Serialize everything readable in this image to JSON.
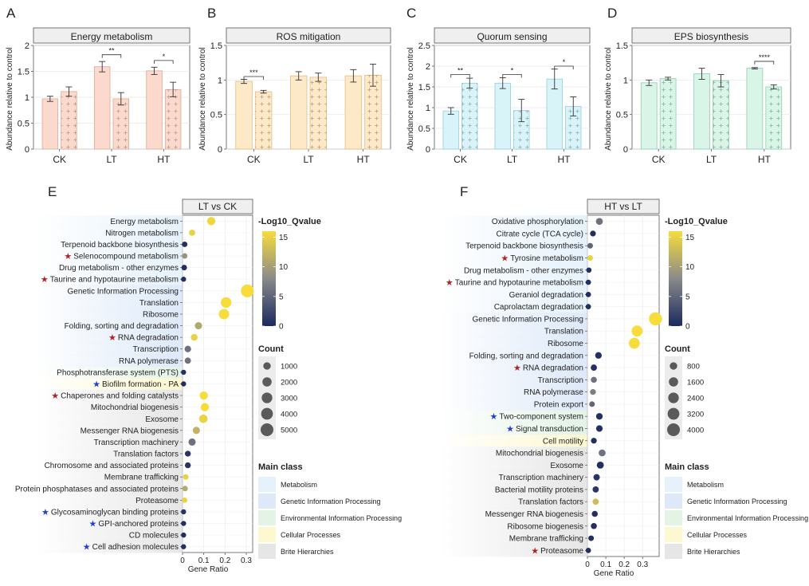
{
  "colors": {
    "low": "#1a2a5e",
    "mid": "#8a8a8a",
    "high": "#f7dc3c",
    "metabolism": "#e6f2fb",
    "genetic": "#dde9f9",
    "environmental": "#e3f3e6",
    "cellular": "#fdf8cf",
    "brite": "#e6e6e6"
  },
  "chart_data": [
    {
      "id": "A",
      "type": "bar",
      "panel_label": "A",
      "title": "Energy metabolism",
      "ylabel": "Abundance relative to control",
      "ylim": [
        0,
        2
      ],
      "yticks": [
        "0",
        "0.5",
        "1",
        "1.5",
        "2"
      ],
      "ytick_values": [
        0,
        0.5,
        1,
        1.5,
        2
      ],
      "categories": [
        "CK",
        "LT",
        "HT"
      ],
      "fill": "#fbd9cc",
      "stroke": "#e0a896",
      "series": [
        {
          "pattern": "plain",
          "values": [
            0.97,
            1.59,
            1.51
          ],
          "errors": [
            0.05,
            0.1,
            0.07
          ]
        },
        {
          "pattern": "plus",
          "values": [
            1.11,
            0.97,
            1.15
          ],
          "errors": [
            0.09,
            0.12,
            0.14
          ]
        }
      ],
      "significance": [
        {
          "category": 1,
          "label": "**",
          "y": 1.82
        },
        {
          "category": 2,
          "label": "*",
          "y": 1.71
        }
      ]
    },
    {
      "id": "B",
      "type": "bar",
      "panel_label": "B",
      "title": "ROS mitigation",
      "ylabel": "Abundance relative to control",
      "ylim": [
        0,
        1.5
      ],
      "yticks": [
        "0",
        "0.5",
        "1",
        "1.5"
      ],
      "ytick_values": [
        0,
        0.5,
        1,
        1.5
      ],
      "categories": [
        "CK",
        "LT",
        "HT"
      ],
      "fill": "#fde8c8",
      "stroke": "#e8bb82",
      "series": [
        {
          "pattern": "plain",
          "values": [
            0.98,
            1.06,
            1.06
          ],
          "errors": [
            0.03,
            0.06,
            0.09
          ]
        },
        {
          "pattern": "plus",
          "values": [
            0.83,
            1.04,
            1.07
          ],
          "errors": [
            0.02,
            0.06,
            0.16
          ]
        }
      ],
      "significance": [
        {
          "category": 0,
          "label": "***",
          "y": 1.05
        }
      ]
    },
    {
      "id": "C",
      "type": "bar",
      "panel_label": "C",
      "title": "Quorum sensing",
      "ylabel": "Abundance relative to control",
      "ylim": [
        0,
        2.5
      ],
      "yticks": [
        "0",
        "0.5",
        "1",
        "1.5",
        "2",
        "2.5"
      ],
      "ytick_values": [
        0,
        0.5,
        1,
        1.5,
        2,
        2.5
      ],
      "categories": [
        "CK",
        "LT",
        "HT"
      ],
      "fill": "#d9f4f9",
      "stroke": "#93cfdc",
      "series": [
        {
          "pattern": "plain",
          "values": [
            0.92,
            1.59,
            1.69
          ],
          "errors": [
            0.08,
            0.13,
            0.24
          ]
        },
        {
          "pattern": "plus",
          "values": [
            1.59,
            0.93,
            1.03
          ],
          "errors": [
            0.12,
            0.27,
            0.23
          ]
        }
      ],
      "significance": [
        {
          "category": 0,
          "label": "**",
          "y": 1.8
        },
        {
          "category": 1,
          "label": "*",
          "y": 1.8
        },
        {
          "category": 2,
          "label": "*",
          "y": 2.0
        }
      ]
    },
    {
      "id": "D",
      "type": "bar",
      "panel_label": "D",
      "title": "EPS biosynthesis",
      "ylabel": "Abundance relative to control",
      "ylim": [
        0,
        1.5
      ],
      "yticks": [
        "0",
        "0.5",
        "1",
        "1.5"
      ],
      "ytick_values": [
        0,
        0.5,
        1,
        1.5
      ],
      "categories": [
        "CK",
        "LT",
        "HT"
      ],
      "fill": "#d8f5e8",
      "stroke": "#8fcfb0",
      "series": [
        {
          "pattern": "plain",
          "values": [
            0.96,
            1.09,
            1.17
          ],
          "errors": [
            0.04,
            0.08,
            0.01
          ]
        },
        {
          "pattern": "plus",
          "values": [
            1.02,
            0.99,
            0.9
          ],
          "errors": [
            0.02,
            0.09,
            0.03
          ]
        }
      ],
      "significance": [
        {
          "category": 2,
          "label": "****",
          "y": 1.27
        }
      ]
    },
    {
      "id": "E",
      "type": "scatter",
      "panel_label": "E",
      "title": "LT vs CK",
      "xlabel": "Gene Ratio",
      "xlim": [
        0,
        0.33
      ],
      "xticks": [
        "0",
        "0.1",
        "0.2",
        "0.3"
      ],
      "xtick_values": [
        0,
        0.1,
        0.2,
        0.3
      ],
      "color_title": "-Log10_Qvalue",
      "color_ticks": [
        "0",
        "5",
        "10",
        "15"
      ],
      "color_tick_values": [
        0,
        5,
        10,
        15
      ],
      "color_range": [
        0,
        16
      ],
      "size_title": "Count",
      "size_labels": [
        "1000",
        "2000",
        "3000",
        "4000",
        "5000"
      ],
      "size_values": [
        1000,
        2000,
        3000,
        4000,
        5000
      ],
      "size_max": 5000,
      "class_title": "Main class",
      "classes": [
        {
          "key": "metabolism",
          "label": "Metabolism"
        },
        {
          "key": "genetic",
          "label": "Genetic Information Processing"
        },
        {
          "key": "environmental",
          "label": "Environmental Information Processing"
        },
        {
          "key": "cellular",
          "label": "Cellular Processes"
        },
        {
          "key": "brite",
          "label": "Brite Hierarchies"
        }
      ],
      "terms": [
        {
          "label": "Energy metabolism",
          "x": 0.135,
          "q": 15.5,
          "count": 1400,
          "star": "",
          "class": "metabolism"
        },
        {
          "label": "Nitrogen metabolism",
          "x": 0.045,
          "q": 15,
          "count": 500,
          "star": "",
          "class": "metabolism"
        },
        {
          "label": "Terpenoid backbone biosynthesis",
          "x": 0.01,
          "q": 0.5,
          "count": 300,
          "star": "",
          "class": "metabolism"
        },
        {
          "label": "Selenocompound metabolism",
          "x": 0.01,
          "q": 9,
          "count": 300,
          "star": "red",
          "class": "metabolism"
        },
        {
          "label": "Drug metabolism - other enzymes",
          "x": 0.008,
          "q": 0.5,
          "count": 300,
          "star": "",
          "class": "metabolism"
        },
        {
          "label": "Taurine and hypotaurine metabolism",
          "x": 0.005,
          "q": 0.5,
          "count": 200,
          "star": "red",
          "class": "metabolism"
        },
        {
          "label": "Genetic Information Processing",
          "x": 0.305,
          "q": 16,
          "count": 5200,
          "star": "",
          "class": "genetic"
        },
        {
          "label": "Translation",
          "x": 0.205,
          "q": 16,
          "count": 3000,
          "star": "",
          "class": "genetic"
        },
        {
          "label": "Ribosome",
          "x": 0.195,
          "q": 16,
          "count": 2800,
          "star": "",
          "class": "genetic"
        },
        {
          "label": "Folding, sorting and degradation",
          "x": 0.075,
          "q": 11,
          "count": 900,
          "star": "",
          "class": "genetic"
        },
        {
          "label": "RNA degradation",
          "x": 0.055,
          "q": 15,
          "count": 700,
          "star": "red",
          "class": "genetic"
        },
        {
          "label": "Transcription",
          "x": 0.025,
          "q": 6,
          "count": 600,
          "star": "",
          "class": "genetic"
        },
        {
          "label": "RNA polymerase",
          "x": 0.025,
          "q": 6,
          "count": 500,
          "star": "",
          "class": "genetic"
        },
        {
          "label": "Phosphotransferase system (PTS)",
          "x": 0.005,
          "q": 0.5,
          "count": 200,
          "star": "",
          "class": "environmental"
        },
        {
          "label": "Biofilm formation - PA",
          "x": 0.005,
          "q": 0.5,
          "count": 200,
          "star": "blue",
          "class": "cellular"
        },
        {
          "label": "Chaperones and folding catalysts",
          "x": 0.1,
          "q": 16,
          "count": 1400,
          "star": "red",
          "class": "brite"
        },
        {
          "label": "Mitochondrial biogenesis",
          "x": 0.105,
          "q": 16,
          "count": 1400,
          "star": "",
          "class": "brite"
        },
        {
          "label": "Exosome",
          "x": 0.098,
          "q": 15,
          "count": 1500,
          "star": "",
          "class": "brite"
        },
        {
          "label": "Messenger RNA biogenesis",
          "x": 0.065,
          "q": 12,
          "count": 900,
          "star": "",
          "class": "brite"
        },
        {
          "label": "Transcription machinery",
          "x": 0.045,
          "q": 6,
          "count": 900,
          "star": "",
          "class": "brite"
        },
        {
          "label": "Translation factors",
          "x": 0.025,
          "q": 1,
          "count": 400,
          "star": "",
          "class": "brite"
        },
        {
          "label": "Chromosome and associated proteins",
          "x": 0.025,
          "q": 1,
          "count": 400,
          "star": "",
          "class": "brite"
        },
        {
          "label": "Membrane trafficking",
          "x": 0.015,
          "q": 15,
          "count": 300,
          "star": "",
          "class": "brite"
        },
        {
          "label": "Protein phosphatases and associated proteins",
          "x": 0.012,
          "q": 11,
          "count": 300,
          "star": "",
          "class": "brite"
        },
        {
          "label": "Proteasome",
          "x": 0.01,
          "q": 15,
          "count": 250,
          "star": "",
          "class": "brite"
        },
        {
          "label": "Glycosaminoglycan binding proteins",
          "x": 0.005,
          "q": 1,
          "count": 200,
          "star": "blue",
          "class": "brite"
        },
        {
          "label": "GPI-anchored proteins",
          "x": 0.005,
          "q": 0.5,
          "count": 200,
          "star": "blue",
          "class": "brite"
        },
        {
          "label": "CD molecules",
          "x": 0.005,
          "q": 0.5,
          "count": 200,
          "star": "",
          "class": "brite"
        },
        {
          "label": "Cell adhesion molecules",
          "x": 0.005,
          "q": 0.5,
          "count": 200,
          "star": "blue",
          "class": "brite"
        }
      ]
    },
    {
      "id": "F",
      "type": "scatter",
      "panel_label": "F",
      "title": "HT vs LT",
      "xlabel": "Gene Ratio",
      "xlim": [
        0,
        0.39
      ],
      "xticks": [
        "0",
        "0.1",
        "0.2",
        "0.3"
      ],
      "xtick_values": [
        0,
        0.1,
        0.2,
        0.3
      ],
      "color_title": "-Log10_Qvalue",
      "color_ticks": [
        "0",
        "5",
        "10",
        "15"
      ],
      "color_tick_values": [
        0,
        5,
        10,
        15
      ],
      "color_range": [
        0,
        16
      ],
      "size_title": "Count",
      "size_labels": [
        "800",
        "1600",
        "2400",
        "3200",
        "4000"
      ],
      "size_values": [
        800,
        1600,
        2400,
        3200,
        4000
      ],
      "size_max": 4000,
      "class_title": "Main class",
      "classes": [
        {
          "key": "metabolism",
          "label": "Metabolism"
        },
        {
          "key": "genetic",
          "label": "Genetic Information Processing"
        },
        {
          "key": "environmental",
          "label": "Environmental Information Processing"
        },
        {
          "key": "cellular",
          "label": "Cellular Processes"
        },
        {
          "key": "brite",
          "label": "Brite Hierarchies"
        }
      ],
      "terms": [
        {
          "label": "Oxidative phosphorylation",
          "x": 0.065,
          "q": 6,
          "count": 600,
          "star": "",
          "class": "metabolism"
        },
        {
          "label": "Citrate cycle (TCA cycle)",
          "x": 0.03,
          "q": 0.5,
          "count": 300,
          "star": "",
          "class": "metabolism"
        },
        {
          "label": "Terpenoid backbone biosynthesis",
          "x": 0.015,
          "q": 5,
          "count": 250,
          "star": "",
          "class": "metabolism"
        },
        {
          "label": "Tyrosine metabolism",
          "x": 0.015,
          "q": 15,
          "count": 250,
          "star": "red",
          "class": "metabolism"
        },
        {
          "label": "Drug metabolism - other enzymes",
          "x": 0.008,
          "q": 0.5,
          "count": 200,
          "star": "",
          "class": "metabolism"
        },
        {
          "label": "Taurine and hypotaurine metabolism",
          "x": 0.005,
          "q": 0.5,
          "count": 200,
          "star": "red",
          "class": "metabolism"
        },
        {
          "label": "Geraniol degradation",
          "x": 0.005,
          "q": 0.5,
          "count": 200,
          "star": "",
          "class": "metabolism"
        },
        {
          "label": "Caprolactam degradation",
          "x": 0.005,
          "q": 0.5,
          "count": 200,
          "star": "",
          "class": "metabolism"
        },
        {
          "label": "Genetic Information Processing",
          "x": 0.37,
          "q": 16,
          "count": 4200,
          "star": "",
          "class": "genetic"
        },
        {
          "label": "Translation",
          "x": 0.27,
          "q": 16,
          "count": 2700,
          "star": "",
          "class": "genetic"
        },
        {
          "label": "Ribosome",
          "x": 0.255,
          "q": 16,
          "count": 2600,
          "star": "",
          "class": "genetic"
        },
        {
          "label": "Folding, sorting and degradation",
          "x": 0.06,
          "q": 0.5,
          "count": 500,
          "star": "",
          "class": "genetic"
        },
        {
          "label": "RNA degradation",
          "x": 0.035,
          "q": 0.5,
          "count": 400,
          "star": "red",
          "class": "genetic"
        },
        {
          "label": "Transcription",
          "x": 0.035,
          "q": 6,
          "count": 350,
          "star": "",
          "class": "genetic"
        },
        {
          "label": "RNA polymerase",
          "x": 0.03,
          "q": 7,
          "count": 300,
          "star": "",
          "class": "genetic"
        },
        {
          "label": "Protein export",
          "x": 0.025,
          "q": 5,
          "count": 250,
          "star": "",
          "class": "genetic"
        },
        {
          "label": "Two-component system",
          "x": 0.065,
          "q": 0.5,
          "count": 500,
          "star": "blue",
          "class": "environmental"
        },
        {
          "label": "Signal transduction",
          "x": 0.065,
          "q": 0.5,
          "count": 500,
          "star": "blue",
          "class": "environmental"
        },
        {
          "label": "Cell motility",
          "x": 0.035,
          "q": 0.5,
          "count": 300,
          "star": "",
          "class": "cellular"
        },
        {
          "label": "Mitochondrial biogenesis",
          "x": 0.08,
          "q": 6,
          "count": 600,
          "star": "",
          "class": "brite"
        },
        {
          "label": "Exosome",
          "x": 0.07,
          "q": 0.5,
          "count": 650,
          "star": "",
          "class": "brite"
        },
        {
          "label": "Transcription machinery",
          "x": 0.05,
          "q": 1,
          "count": 450,
          "star": "",
          "class": "brite"
        },
        {
          "label": "Bacterial motility proteins",
          "x": 0.045,
          "q": 1,
          "count": 400,
          "star": "",
          "class": "brite"
        },
        {
          "label": "Translation factors",
          "x": 0.045,
          "q": 13,
          "count": 400,
          "star": "",
          "class": "brite"
        },
        {
          "label": "Messenger RNA biogenesis",
          "x": 0.04,
          "q": 0.5,
          "count": 350,
          "star": "",
          "class": "brite"
        },
        {
          "label": "Ribosome biogenesis",
          "x": 0.035,
          "q": 0.5,
          "count": 350,
          "star": "",
          "class": "brite"
        },
        {
          "label": "Membrane trafficking",
          "x": 0.02,
          "q": 0.5,
          "count": 250,
          "star": "",
          "class": "brite"
        },
        {
          "label": "Proteasome",
          "x": 0.005,
          "q": 0.5,
          "count": 200,
          "star": "red",
          "class": "brite"
        }
      ]
    }
  ]
}
